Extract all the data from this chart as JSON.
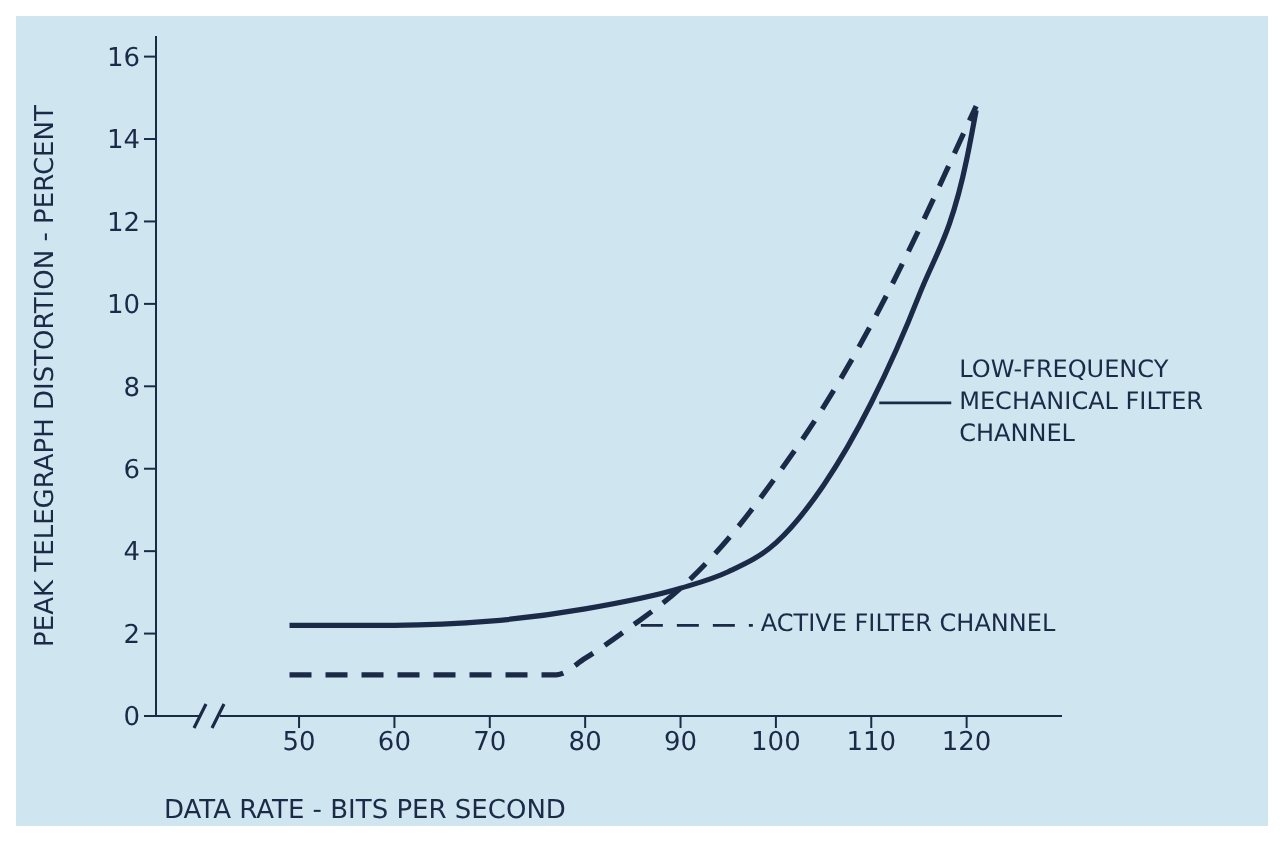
{
  "chart_data": {
    "type": "line",
    "xlabel": "DATA RATE - BITS PER SECOND",
    "ylabel": "PEAK TELEGRAPH DISTORTION - PERCENT",
    "xlim": [
      35,
      130
    ],
    "xticks": [
      50,
      60,
      70,
      80,
      90,
      100,
      110,
      120
    ],
    "ylim": [
      0,
      16.5
    ],
    "yticks": [
      0,
      2,
      4,
      6,
      8,
      10,
      12,
      14,
      16
    ],
    "legend": "right",
    "marker": "none",
    "series": [
      {
        "name": "LOW-FREQUENCY MECHANICAL FILTER CHANNEL",
        "color": "#1b2a47",
        "line_style": "solid",
        "x": [
          49,
          60,
          70,
          80,
          90,
          95,
          100,
          105,
          110,
          115,
          120,
          121
        ],
        "values": [
          2.2,
          2.2,
          2.3,
          2.6,
          3.1,
          3.5,
          4.2,
          5.6,
          7.6,
          10.2,
          13.5,
          14.7
        ]
      },
      {
        "name": "ACTIVE FILTER CHANNEL",
        "color": "#1b2a47",
        "line_style": "dashed",
        "x": [
          49,
          60,
          70,
          77,
          80,
          85,
          90,
          95,
          100,
          105,
          110,
          115,
          120,
          121
        ],
        "values": [
          1,
          1,
          1,
          1,
          1.4,
          2.2,
          3.1,
          4.3,
          5.8,
          7.5,
          9.5,
          11.8,
          14.3,
          14.8
        ]
      }
    ]
  }
}
